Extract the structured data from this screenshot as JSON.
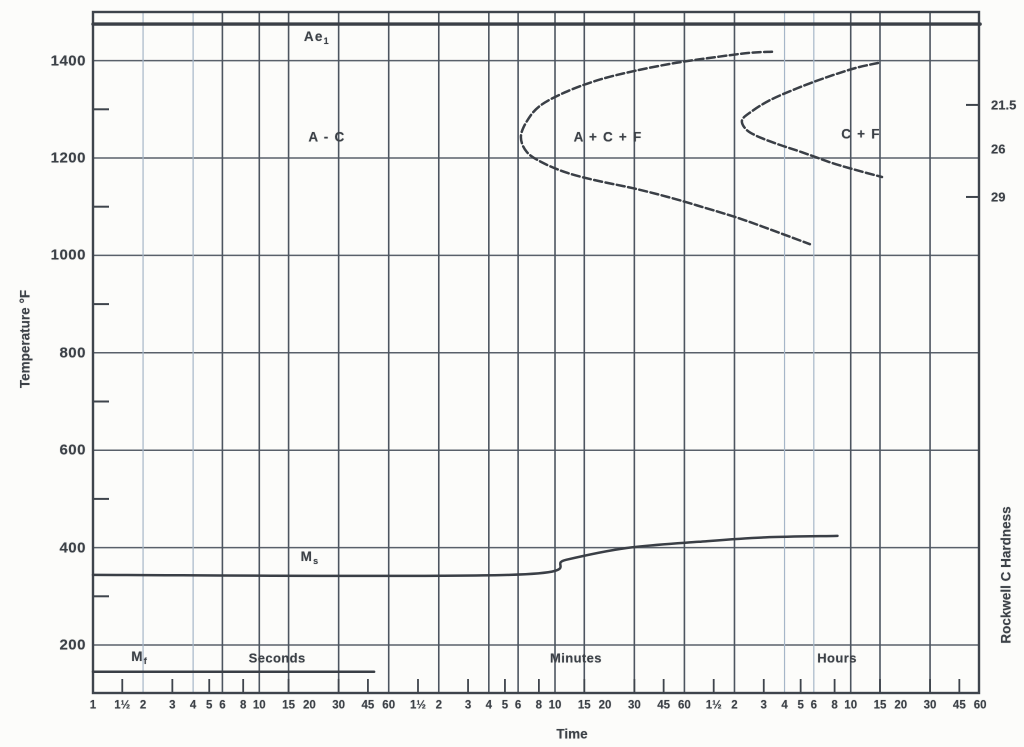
{
  "chart_data": {
    "type": "line",
    "description": "Scanned isothermal transformation (TTT) diagram",
    "x_axis": {
      "label": "Time",
      "scale": "log",
      "range_s": [
        1,
        216000
      ],
      "decades": [
        {
          "name": "Seconds",
          "multiplier_s": 1,
          "label_t_s": 12.8
        },
        {
          "name": "Minutes",
          "multiplier_s": 60,
          "label_t_s": 802
        },
        {
          "name": "Hours",
          "multiplier_s": 3600,
          "label_t_s": 29800
        }
      ],
      "tick_values": [
        1,
        1.5,
        2,
        3,
        4,
        5,
        6,
        8,
        10,
        15,
        20,
        30,
        45,
        60
      ],
      "tick_labels": [
        "1",
        "1½",
        "2",
        "3",
        "4",
        "5",
        "6",
        "8",
        "10",
        "15",
        "20",
        "30",
        "45",
        "60"
      ],
      "gridline_multipliers": [
        2,
        4,
        6,
        10,
        15,
        30,
        60
      ],
      "minor_tick_multipliers": [
        1.5,
        3,
        5,
        8,
        15,
        30,
        45
      ]
    },
    "y_axis": {
      "label": "Temperature °F",
      "range": [
        100,
        1500
      ],
      "major_ticks": [
        200,
        400,
        600,
        800,
        1000,
        1200,
        1400
      ],
      "minor_ticks": [
        300,
        500,
        700,
        900,
        1100,
        1300
      ],
      "grid": true
    },
    "y2_axis": {
      "label": "Rockwell C Hardness",
      "entries": [
        {
          "label": "21.5",
          "temp_f": 1309,
          "tick": true
        },
        {
          "label": "26",
          "temp_f": 1219,
          "tick": false
        },
        {
          "label": "29",
          "temp_f": 1120,
          "tick": true
        }
      ]
    },
    "series": [
      {
        "name": "Ae1 temperature line",
        "style": "thick",
        "points": [
          [
            1,
            1475
          ],
          [
            216000,
            1475
          ]
        ]
      },
      {
        "name": "A+C+F transformation C-curve",
        "style": "dashed",
        "points": [
          [
            12100,
            1418
          ],
          [
            8930,
            1416
          ],
          [
            5500,
            1407
          ],
          [
            3160,
            1395
          ],
          [
            1815,
            1379
          ],
          [
            1089,
            1360
          ],
          [
            689,
            1335
          ],
          [
            487,
            1307
          ],
          [
            407,
            1276
          ],
          [
            374,
            1243
          ],
          [
            407,
            1212
          ],
          [
            508,
            1190
          ],
          [
            718,
            1169
          ],
          [
            1089,
            1153
          ],
          [
            1766,
            1138
          ],
          [
            2865,
            1120
          ],
          [
            4656,
            1099
          ],
          [
            7550,
            1077
          ],
          [
            12100,
            1052
          ],
          [
            20470,
            1023
          ]
        ]
      },
      {
        "name": "C+F transformation C-curve",
        "style": "dashed",
        "points": [
          [
            52500,
            1395
          ],
          [
            38700,
            1385
          ],
          [
            25900,
            1366
          ],
          [
            17100,
            1343
          ],
          [
            11800,
            1319
          ],
          [
            9170,
            1296
          ],
          [
            8000,
            1278
          ],
          [
            8450,
            1259
          ],
          [
            9840,
            1245
          ],
          [
            12970,
            1229
          ],
          [
            18300,
            1212
          ],
          [
            27700,
            1190
          ],
          [
            40900,
            1173
          ],
          [
            55500,
            1161
          ]
        ]
      },
      {
        "name": "Ms temperature line",
        "style": "solid",
        "points": [
          [
            1,
            344
          ],
          [
            320,
            344
          ],
          [
            700,
            375
          ],
          [
            1600,
            399
          ],
          [
            4400,
            412
          ],
          [
            11000,
            421
          ],
          [
            30000,
            424
          ]
        ]
      },
      {
        "name": "Mf temperature line",
        "style": "solid",
        "points": [
          [
            1,
            145
          ],
          [
            49,
            145
          ]
        ]
      }
    ],
    "annotations": [
      {
        "text": "Ae",
        "sub": "1",
        "t_s": 22,
        "temp_f": 1446
      },
      {
        "text": "A - C",
        "t_s": 25.5,
        "temp_f": 1243
      },
      {
        "text": "A + C + F",
        "t_s": 1250,
        "temp_f": 1243
      },
      {
        "text": "C + F",
        "t_s": 41500,
        "temp_f": 1249
      },
      {
        "text": "M",
        "sub": "s",
        "t_s": 20,
        "temp_f": 378
      },
      {
        "text": "M",
        "sub": "f",
        "t_s": 1.89,
        "temp_f": 173
      }
    ],
    "colors": {
      "ink": "#3a3f46",
      "grid_dark": "#4d5560",
      "grid_major_h": "#59606a",
      "grid_light": "#a6b6c8",
      "paper": "#fcfcfa"
    }
  }
}
